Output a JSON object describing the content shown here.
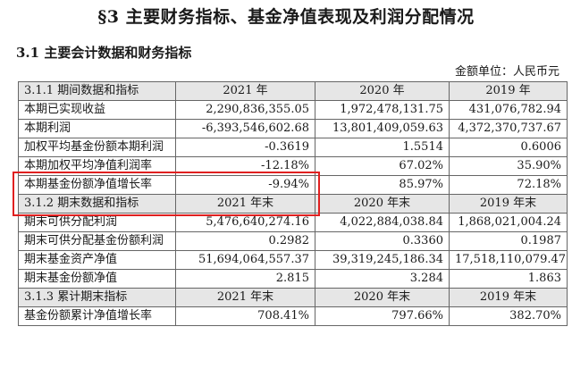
{
  "section_title": "§3 主要财务指标、基金净值表现及利润分配情况",
  "subsection_title": "3.1 主要会计数据和财务指标",
  "unit_label": "金额单位：人民币元",
  "table": {
    "header1": [
      "3.1.1 期间数据和指标",
      "2021 年",
      "2020 年",
      "2019 年"
    ],
    "period_rows": [
      {
        "label": "本期已实现收益",
        "v2021": "2,290,836,355.05",
        "v2020": "1,972,478,131.75",
        "v2019": "431,076,782.94"
      },
      {
        "label": "本期利润",
        "v2021": "-6,393,546,602.68",
        "v2020": "13,801,409,059.63",
        "v2019": "4,372,370,737.67"
      },
      {
        "label": "加权平均基金份额本期利润",
        "v2021": "-0.3619",
        "v2020": "1.5514",
        "v2019": "0.6006"
      },
      {
        "label": "本期加权平均净值利润率",
        "v2021": "-12.18%",
        "v2020": "67.02%",
        "v2019": "35.90%"
      },
      {
        "label": "本期基金份额净值增长率",
        "v2021": "-9.94%",
        "v2020": "85.97%",
        "v2019": "72.18%"
      }
    ],
    "header2": [
      "3.1.2 期末数据和指标",
      "2021 年末",
      "2020 年末",
      "2019 年末"
    ],
    "end_rows": [
      {
        "label": "期末可供分配利润",
        "v2021": "5,476,640,274.16",
        "v2020": "4,022,884,038.84",
        "v2019": "1,868,021,004.24"
      },
      {
        "label": "期末可供分配基金份额利润",
        "v2021": "0.2982",
        "v2020": "0.3360",
        "v2019": "0.1987"
      },
      {
        "label": "期末基金资产净值",
        "v2021": "51,694,064,557.37",
        "v2020": "39,319,245,186.34",
        "v2019": "17,518,110,079.47"
      },
      {
        "label": "期末基金份额净值",
        "v2021": "2.815",
        "v2020": "3.284",
        "v2019": "1.863"
      }
    ],
    "header3": [
      "3.1.3 累计期末指标",
      "2021 年末",
      "2020 年末",
      "2019 年末"
    ],
    "cum_rows": [
      {
        "label": "基金份额累计净值增长率",
        "v2021": "708.41%",
        "v2020": "797.66%",
        "v2019": "382.70%"
      }
    ]
  },
  "highlight_color": "#e02020"
}
